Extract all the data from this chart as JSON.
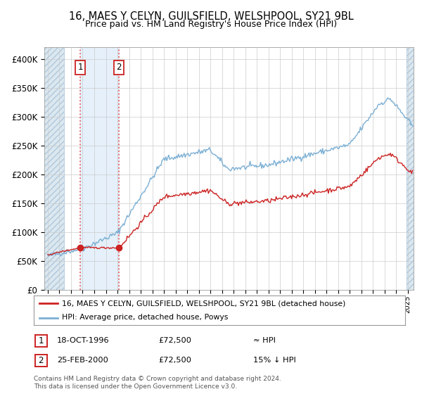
{
  "title1": "16, MAES Y CELYN, GUILSFIELD, WELSHPOOL, SY21 9BL",
  "title2": "Price paid vs. HM Land Registry's House Price Index (HPI)",
  "legend_line1": "16, MAES Y CELYN, GUILSFIELD, WELSHPOOL, SY21 9BL (detached house)",
  "legend_line2": "HPI: Average price, detached house, Powys",
  "sale1_date": "18-OCT-1996",
  "sale1_price": 72500,
  "sale1_label": "≈ HPI",
  "sale2_date": "25-FEB-2000",
  "sale2_price": 72500,
  "sale2_label": "15% ↓ HPI",
  "footnote1": "Contains HM Land Registry data © Crown copyright and database right 2024.",
  "footnote2": "This data is licensed under the Open Government Licence v3.0.",
  "hpi_color": "#7bafd4",
  "price_color": "#cc2222",
  "dashed_color": "#ee4444",
  "background_color": "#ffffff",
  "grid_color": "#cccccc",
  "ylim": [
    0,
    420000
  ],
  "yticks": [
    0,
    50000,
    100000,
    150000,
    200000,
    250000,
    300000,
    350000,
    400000
  ],
  "ytick_labels": [
    "£0",
    "£50K",
    "£100K",
    "£150K",
    "£200K",
    "£250K",
    "£300K",
    "£350K",
    "£400K"
  ],
  "sale1_t": 1996.79,
  "sale2_t": 2000.12,
  "xmin": 1993.7,
  "xmax": 2025.5,
  "hatch_right_start": 2024.92
}
